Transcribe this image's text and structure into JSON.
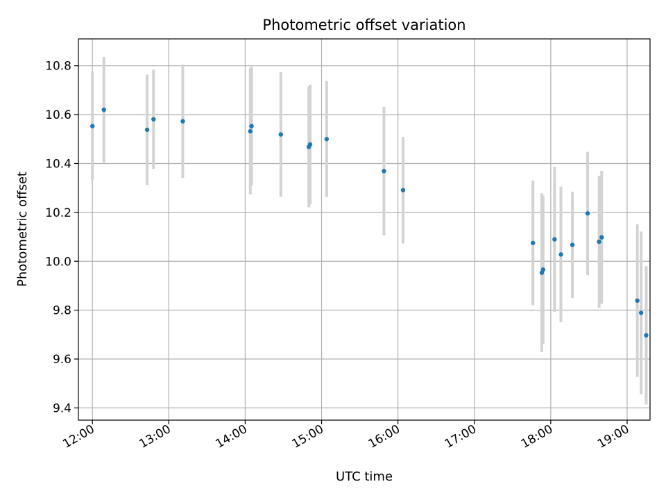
{
  "chart_data": {
    "type": "scatter",
    "title": "Photometric offset variation",
    "xlabel": "UTC time",
    "ylabel": "Photometric offset",
    "x_unit": "hour of day (UTC)",
    "xlim": [
      "11:49",
      "19:18"
    ],
    "ylim": [
      9.35,
      10.91
    ],
    "x_ticks": [
      "12:00",
      "13:00",
      "14:00",
      "15:00",
      "16:00",
      "17:00",
      "18:00",
      "19:00"
    ],
    "y_ticks": [
      "9.4",
      "9.6",
      "9.8",
      "10.0",
      "10.2",
      "10.4",
      "10.6",
      "10.8"
    ],
    "grid": true,
    "colors": {
      "point": "#1f77b4",
      "errorbar": "#d3d3d3",
      "grid": "#b0b0b0"
    },
    "series": [
      {
        "points": [
          {
            "x": "12:00",
            "y": 10.553,
            "err": 0.222
          },
          {
            "x": "12:09",
            "y": 10.62,
            "err": 0.216
          },
          {
            "x": "12:43",
            "y": 10.538,
            "err": 0.226
          },
          {
            "x": "12:48",
            "y": 10.581,
            "err": 0.203
          },
          {
            "x": "13:11",
            "y": 10.573,
            "err": 0.232
          },
          {
            "x": "14:04",
            "y": 10.532,
            "err": 0.258
          },
          {
            "x": "14:05",
            "y": 10.553,
            "err": 0.244
          },
          {
            "x": "14:28",
            "y": 10.519,
            "err": 0.255
          },
          {
            "x": "14:50",
            "y": 10.468,
            "err": 0.247
          },
          {
            "x": "14:51",
            "y": 10.478,
            "err": 0.245
          },
          {
            "x": "15:04",
            "y": 10.5,
            "err": 0.238
          },
          {
            "x": "15:49",
            "y": 10.369,
            "err": 0.263
          },
          {
            "x": "16:04",
            "y": 10.291,
            "err": 0.218
          },
          {
            "x": "17:46",
            "y": 10.075,
            "err": 0.255
          },
          {
            "x": "17:53",
            "y": 9.953,
            "err": 0.325
          },
          {
            "x": "17:54",
            "y": 9.966,
            "err": 0.303
          },
          {
            "x": "18:03",
            "y": 10.09,
            "err": 0.297
          },
          {
            "x": "18:08",
            "y": 10.028,
            "err": 0.277
          },
          {
            "x": "18:17",
            "y": 10.067,
            "err": 0.217
          },
          {
            "x": "18:29",
            "y": 10.196,
            "err": 0.252
          },
          {
            "x": "18:38",
            "y": 10.08,
            "err": 0.27
          },
          {
            "x": "18:40",
            "y": 10.098,
            "err": 0.272
          },
          {
            "x": "19:08",
            "y": 9.839,
            "err": 0.312
          },
          {
            "x": "19:11",
            "y": 9.789,
            "err": 0.333
          },
          {
            "x": "19:15",
            "y": 9.697,
            "err": 0.283
          }
        ]
      }
    ]
  }
}
